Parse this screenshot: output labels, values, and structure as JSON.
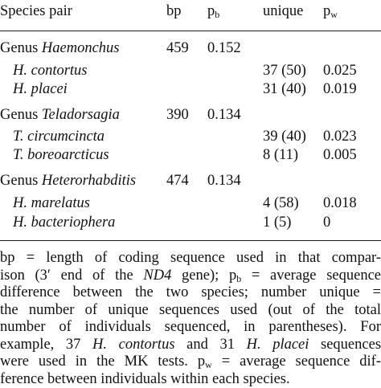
{
  "header": {
    "species_pair": "Species pair",
    "bp": "bp",
    "pb_base": "p",
    "pb_sub": "b",
    "unique": "unique",
    "pw_base": "p",
    "pw_sub": "w"
  },
  "groups": [
    {
      "genus_prefix": "Genus ",
      "genus_name": "Haemonchus",
      "bp": "459",
      "pb": "0.152",
      "rows": [
        {
          "species": "H. contortus",
          "unique": "37 (50)",
          "pw": "0.025"
        },
        {
          "species": "H. placei",
          "unique": "31 (40)",
          "pw": "0.019"
        }
      ]
    },
    {
      "genus_prefix": "Genus ",
      "genus_name": "Teladorsagia",
      "bp": "390",
      "pb": "0.134",
      "rows": [
        {
          "species": "T. circumcincta",
          "unique": "39 (40)",
          "pw": "0.023"
        },
        {
          "species": "T. boreoarcticus",
          "unique": "8 (11)",
          "pw": "0.005"
        }
      ]
    },
    {
      "genus_prefix": "Genus ",
      "genus_name": "Heterorhabditis",
      "bp": "474",
      "pb": "0.134",
      "rows": [
        {
          "species": "H. marelatus",
          "unique": "4 (58)",
          "pw": "0.018"
        },
        {
          "species": "H. bacteriophera",
          "unique": "1 (5)",
          "pw": "0"
        }
      ]
    }
  ],
  "footnote": {
    "l1": "bp = length of coding sequence used in that compar-",
    "l2a": "ison (3′ end of the ",
    "l2b": "ND4",
    "l2c": " gene); p",
    "l2d": "b",
    "l2e": " = average sequence",
    "l3": "difference between the two species; number unique =",
    "l4": "the number of unique sequences used (out of the total",
    "l5": "number of individuals sequenced, in parentheses). For",
    "l6a": "example, 37 ",
    "l6b": "H. contortus",
    "l6c": " and 31 ",
    "l6d": "H. placei",
    "l6e": " sequences",
    "l7a": "were used in the MK tests. p",
    "l7b": "w",
    "l7c": " = average sequence dif-",
    "l8": "ference between individuals within each species."
  }
}
